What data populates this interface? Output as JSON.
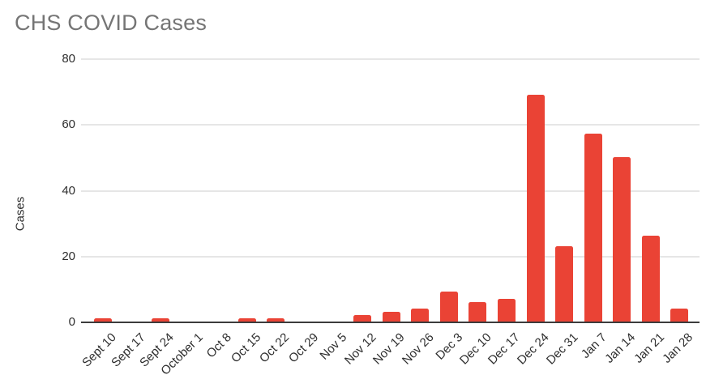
{
  "page": {
    "background": "#ffffff"
  },
  "chart_data": {
    "type": "bar",
    "title": "CHS COVID Cases",
    "xlabel": "",
    "ylabel": "Cases",
    "categories": [
      "Sept 10",
      "Sept 17",
      "Sept 24",
      "October 1",
      "Oct 8",
      "Oct 15",
      "Oct 22",
      "Oct 29",
      "Nov 5",
      "Nov 12",
      "Nov 19",
      "Nov 26",
      "Dec 3",
      "Dec 10",
      "Dec 17",
      "Dec 24",
      "Dec 31",
      "Jan 7",
      "Jan 14",
      "Jan 21",
      "Jan 28"
    ],
    "values": [
      1,
      0,
      1,
      0,
      0,
      1,
      1,
      0,
      0,
      2,
      3,
      4,
      9,
      6,
      7,
      69,
      23,
      57,
      50,
      26,
      4
    ],
    "y_ticks": [
      0,
      20,
      40,
      60,
      80
    ],
    "ylim": [
      0,
      80
    ],
    "grid": true,
    "legend_position": "none",
    "x_label_rotation_deg": -45
  },
  "colors": {
    "bar": "#ea4335",
    "title": "#757575",
    "axis_label": "#2e2e2e",
    "gridline": "#e6e6e6",
    "axis_line": "#3c3c3c",
    "background": "#ffffff"
  }
}
